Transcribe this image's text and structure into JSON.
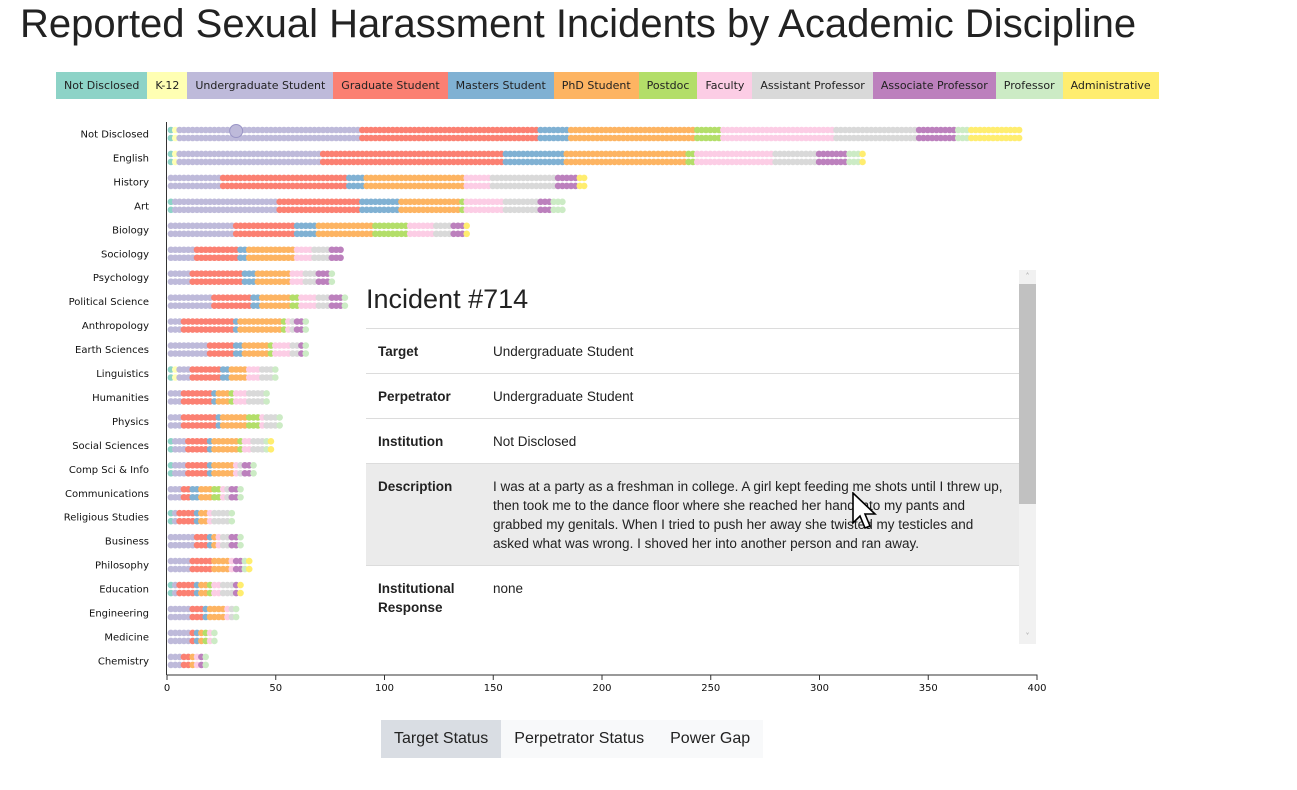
{
  "title": "Reported Sexual Harassment Incidents by Academic Discipline",
  "legend": [
    {
      "label": "Not Disclosed",
      "color": "#8dd3c7"
    },
    {
      "label": "K-12",
      "color": "#ffffb3"
    },
    {
      "label": "Undergraduate Student",
      "color": "#bebada"
    },
    {
      "label": "Graduate Student",
      "color": "#fb8072"
    },
    {
      "label": "Masters Student",
      "color": "#80b1d3"
    },
    {
      "label": "PhD Student",
      "color": "#fdb462"
    },
    {
      "label": "Postdoc",
      "color": "#b3de69"
    },
    {
      "label": "Faculty",
      "color": "#fccde5"
    },
    {
      "label": "Assistant Professor",
      "color": "#d9d9d9"
    },
    {
      "label": "Associate Professor",
      "color": "#bc80bd"
    },
    {
      "label": "Professor",
      "color": "#ccebc5"
    },
    {
      "label": "Administrative",
      "color": "#ffed6f"
    }
  ],
  "chart_data": {
    "type": "bar",
    "orientation": "horizontal",
    "stacked": true,
    "mark": "dot",
    "categories": [
      "Not Disclosed",
      "English",
      "History",
      "Art",
      "Biology",
      "Sociology",
      "Psychology",
      "Political Science",
      "Anthropology",
      "Earth Sciences",
      "Linguistics",
      "Humanities",
      "Physics",
      "Social Sciences",
      "Comp Sci & Info",
      "Communications",
      "Religious Studies",
      "Business",
      "Philosophy",
      "Education",
      "Engineering",
      "Medicine",
      "Chemistry"
    ],
    "series": [
      {
        "name": "Not Disclosed",
        "values": [
          2,
          2,
          0,
          2,
          0,
          0,
          0,
          0,
          0,
          0,
          2,
          0,
          0,
          2,
          2,
          0,
          2,
          0,
          0,
          2,
          0,
          0,
          0
        ]
      },
      {
        "name": "K-12",
        "values": [
          2,
          2,
          0,
          0,
          0,
          0,
          0,
          0,
          0,
          0,
          2,
          0,
          0,
          0,
          0,
          0,
          0,
          0,
          0,
          0,
          0,
          0,
          0
        ]
      },
      {
        "name": "Undergraduate Student",
        "values": [
          84,
          66,
          24,
          48,
          30,
          12,
          10,
          20,
          6,
          18,
          6,
          6,
          6,
          6,
          6,
          6,
          2,
          12,
          10,
          2,
          10,
          10,
          6
        ]
      },
      {
        "name": "Graduate Student",
        "values": [
          82,
          84,
          58,
          38,
          28,
          20,
          24,
          18,
          24,
          12,
          14,
          14,
          16,
          10,
          10,
          4,
          8,
          6,
          10,
          8,
          6,
          2,
          4
        ]
      },
      {
        "name": "Masters Student",
        "values": [
          14,
          28,
          8,
          18,
          10,
          4,
          6,
          4,
          2,
          4,
          4,
          2,
          2,
          2,
          2,
          4,
          2,
          2,
          0,
          2,
          2,
          2,
          0
        ]
      },
      {
        "name": "PhD Student",
        "values": [
          58,
          56,
          46,
          28,
          26,
          22,
          16,
          14,
          20,
          12,
          8,
          6,
          12,
          12,
          10,
          6,
          4,
          2,
          8,
          4,
          8,
          2,
          2
        ]
      },
      {
        "name": "Postdoc",
        "values": [
          12,
          4,
          0,
          2,
          16,
          0,
          0,
          4,
          2,
          2,
          0,
          2,
          6,
          2,
          0,
          4,
          0,
          0,
          0,
          2,
          0,
          2,
          0
        ]
      },
      {
        "name": "Faculty",
        "values": [
          52,
          36,
          12,
          18,
          12,
          8,
          6,
          8,
          2,
          8,
          6,
          6,
          2,
          4,
          2,
          2,
          2,
          2,
          2,
          4,
          2,
          2,
          2
        ]
      },
      {
        "name": "Assistant Professor",
        "values": [
          38,
          20,
          30,
          16,
          8,
          8,
          6,
          6,
          2,
          4,
          6,
          8,
          6,
          6,
          2,
          2,
          8,
          4,
          0,
          6,
          2,
          0,
          0
        ]
      },
      {
        "name": "Associate Professor",
        "values": [
          18,
          14,
          10,
          6,
          6,
          6,
          6,
          6,
          4,
          2,
          0,
          0,
          0,
          0,
          4,
          4,
          0,
          4,
          4,
          2,
          0,
          0,
          2
        ]
      },
      {
        "name": "Professor",
        "values": [
          6,
          6,
          0,
          6,
          0,
          0,
          2,
          2,
          2,
          2,
          2,
          2,
          2,
          2,
          2,
          2,
          2,
          2,
          2,
          0,
          2,
          2,
          2
        ]
      },
      {
        "name": "Administrative",
        "values": [
          24,
          2,
          4,
          0,
          2,
          0,
          0,
          0,
          0,
          0,
          0,
          0,
          0,
          2,
          0,
          0,
          0,
          0,
          2,
          2,
          0,
          0,
          0
        ]
      }
    ],
    "xlim": [
      0,
      400
    ],
    "xticks": [
      0,
      50,
      100,
      150,
      200,
      250,
      300,
      350,
      400
    ],
    "highlighted": {
      "category": "Not Disclosed",
      "series": "Undergraduate Student",
      "index": 31
    },
    "title": "",
    "xlabel": "",
    "ylabel": "",
    "grid": false,
    "legend_position": "top"
  },
  "panel": {
    "title": "Incident #714",
    "rows": [
      {
        "key": "Target",
        "value": "Undergraduate Student"
      },
      {
        "key": "Perpetrator",
        "value": "Undergraduate Student"
      },
      {
        "key": "Institution",
        "value": "Not Disclosed"
      },
      {
        "key": "Description",
        "value": "I was at a party as a freshman in college. A girl kept feeding me shots until I threw up, then took me to the dance floor where she reached her hand into my pants and grabbed my genitals. When I tried to push her away she twisted my testicles and asked what was wrong. I shoved her into another person and ran away."
      },
      {
        "key": "Institutional Response",
        "value": "none"
      }
    ],
    "scroll_up": "˄",
    "scroll_down": "˅"
  },
  "view_buttons": [
    {
      "label": "Target Status",
      "active": true
    },
    {
      "label": "Perpetrator Status",
      "active": false
    },
    {
      "label": "Power Gap",
      "active": false
    }
  ],
  "icons": {
    "cursor": "arrow-cursor-icon"
  }
}
